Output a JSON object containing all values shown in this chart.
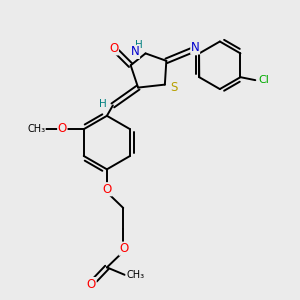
{
  "bg_color": "#ebebeb",
  "atom_colors": {
    "O": "#ff0000",
    "N": "#0000cd",
    "S": "#b8a000",
    "Cl": "#00aa00",
    "H": "#008080",
    "C": "#000000"
  },
  "bond_color": "#000000",
  "figsize": [
    3.0,
    3.0
  ],
  "dpi": 100
}
